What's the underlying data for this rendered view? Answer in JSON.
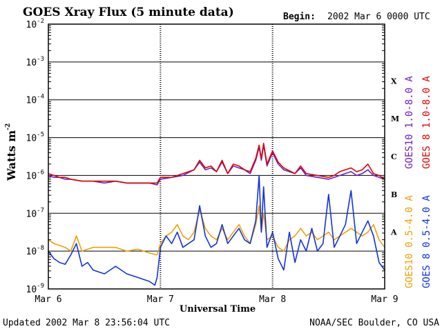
{
  "chart_data": {
    "type": "line",
    "title": "GOES Xray Flux (5 minute data)",
    "begin_label": "Begin:",
    "begin_value": "2002 Mar 6 0000 UTC",
    "ylabel": "Watts m",
    "ylabel_exp": "-2",
    "xlabel": "Universal Time",
    "yscale": "log",
    "ylim": [
      1e-09,
      0.01
    ],
    "y_ticks": [
      {
        "exp": -2,
        "base": "10",
        "sup": "-2"
      },
      {
        "exp": -3,
        "base": "10",
        "sup": "-3"
      },
      {
        "exp": -4,
        "base": "10",
        "sup": "-4"
      },
      {
        "exp": -5,
        "base": "10",
        "sup": "-5"
      },
      {
        "exp": -6,
        "base": "10",
        "sup": "-6"
      },
      {
        "exp": -7,
        "base": "10",
        "sup": "-7"
      },
      {
        "exp": -8,
        "base": "10",
        "sup": "-8"
      },
      {
        "exp": -9,
        "base": "10",
        "sup": "-9"
      }
    ],
    "xlim": [
      0,
      3
    ],
    "x_ticks": [
      {
        "day": 0,
        "label": "Mar 6"
      },
      {
        "day": 1,
        "label": "Mar 7"
      },
      {
        "day": 2,
        "label": "Mar 8"
      },
      {
        "day": 3,
        "label": "Mar 9"
      }
    ],
    "flare_classes": [
      {
        "label": "X",
        "exp": -3.5
      },
      {
        "label": "M",
        "exp": -4.5
      },
      {
        "label": "C",
        "exp": -5.5
      },
      {
        "label": "B",
        "exp": -6.5
      },
      {
        "label": "A",
        "exp": -7.5
      }
    ],
    "series": [
      {
        "name": "GOES10 1.0-8.0 A",
        "color": "#6a1fc8",
        "x": [
          0.0,
          0.05,
          0.1,
          0.15,
          0.2,
          0.3,
          0.4,
          0.5,
          0.6,
          0.7,
          0.8,
          0.9,
          0.97,
          1.0,
          1.1,
          1.2,
          1.3,
          1.35,
          1.4,
          1.45,
          1.5,
          1.55,
          1.6,
          1.65,
          1.7,
          1.75,
          1.8,
          1.85,
          1.88,
          1.9,
          1.92,
          1.95,
          2.0,
          2.05,
          2.1,
          2.2,
          2.25,
          2.3,
          2.4,
          2.5,
          2.55,
          2.6,
          2.7,
          2.75,
          2.8,
          2.85,
          2.9,
          2.95,
          3.0
        ],
        "exponents": [
          -6.0,
          -6.05,
          -6.05,
          -6.1,
          -6.1,
          -6.15,
          -6.15,
          -6.2,
          -6.15,
          -6.2,
          -6.2,
          -6.2,
          -6.25,
          -6.1,
          -6.05,
          -6.0,
          -5.85,
          -5.65,
          -5.85,
          -5.8,
          -5.9,
          -5.65,
          -5.95,
          -5.75,
          -5.8,
          -5.85,
          -5.95,
          -5.6,
          -5.25,
          -5.6,
          -5.2,
          -5.75,
          -5.4,
          -5.7,
          -5.85,
          -5.95,
          -5.8,
          -6.0,
          -6.05,
          -6.1,
          -6.05,
          -6.0,
          -5.9,
          -6.0,
          -5.95,
          -5.85,
          -6.0,
          -6.05,
          -6.1
        ]
      },
      {
        "name": "GOES 8 1.0-8.0 A",
        "color": "#e00000",
        "x": [
          0.0,
          0.05,
          0.1,
          0.15,
          0.2,
          0.3,
          0.4,
          0.5,
          0.6,
          0.7,
          0.8,
          0.9,
          0.97,
          1.0,
          1.1,
          1.2,
          1.3,
          1.35,
          1.4,
          1.45,
          1.5,
          1.55,
          1.6,
          1.65,
          1.7,
          1.75,
          1.8,
          1.85,
          1.88,
          1.9,
          1.92,
          1.95,
          2.0,
          2.05,
          2.1,
          2.2,
          2.25,
          2.3,
          2.4,
          2.5,
          2.55,
          2.6,
          2.7,
          2.75,
          2.8,
          2.85,
          2.9,
          2.95,
          3.0
        ],
        "exponents": [
          -5.95,
          -6.0,
          -6.05,
          -6.05,
          -6.1,
          -6.15,
          -6.15,
          -6.15,
          -6.15,
          -6.2,
          -6.2,
          -6.2,
          -6.2,
          -6.05,
          -6.05,
          -5.95,
          -5.85,
          -5.6,
          -5.8,
          -5.75,
          -5.9,
          -5.6,
          -5.95,
          -5.7,
          -5.75,
          -5.85,
          -5.9,
          -5.55,
          -5.2,
          -5.55,
          -5.15,
          -5.7,
          -5.35,
          -5.65,
          -5.8,
          -5.95,
          -5.75,
          -5.95,
          -6.0,
          -6.05,
          -6.0,
          -5.9,
          -5.8,
          -5.9,
          -5.85,
          -5.7,
          -5.95,
          -6.0,
          -6.1
        ]
      },
      {
        "name": "GOES10 0.5-4.0 A",
        "color": "#f0a000",
        "x": [
          0.0,
          0.05,
          0.1,
          0.15,
          0.2,
          0.25,
          0.3,
          0.35,
          0.4,
          0.5,
          0.6,
          0.7,
          0.8,
          0.9,
          0.97,
          1.0,
          1.05,
          1.1,
          1.15,
          1.2,
          1.25,
          1.3,
          1.35,
          1.4,
          1.45,
          1.5,
          1.55,
          1.6,
          1.65,
          1.7,
          1.75,
          1.8,
          1.85,
          1.88,
          1.9,
          1.92,
          1.95,
          2.0,
          2.05,
          2.1,
          2.15,
          2.2,
          2.25,
          2.3,
          2.35,
          2.4,
          2.45,
          2.5,
          2.55,
          2.6,
          2.65,
          2.7,
          2.75,
          2.8,
          2.85,
          2.9,
          2.95,
          3.0
        ],
        "exponents": [
          -7.7,
          -7.8,
          -7.85,
          -7.9,
          -8.0,
          -7.6,
          -8.0,
          -7.95,
          -7.9,
          -7.9,
          -7.9,
          -8.0,
          -7.95,
          -8.05,
          -8.1,
          -7.8,
          -7.6,
          -7.5,
          -7.3,
          -7.6,
          -7.7,
          -7.5,
          -6.9,
          -7.4,
          -7.6,
          -7.7,
          -7.4,
          -7.7,
          -7.5,
          -7.3,
          -7.6,
          -7.8,
          -7.3,
          -6.8,
          -7.5,
          -7.0,
          -7.7,
          -7.6,
          -7.9,
          -8.0,
          -7.7,
          -7.6,
          -7.4,
          -7.6,
          -7.5,
          -7.7,
          -7.6,
          -7.5,
          -7.7,
          -7.6,
          -7.5,
          -7.4,
          -7.5,
          -7.6,
          -7.5,
          -7.3,
          -7.7,
          -7.9
        ]
      },
      {
        "name": "GOES 8 0.5-4.0 A",
        "color": "#1030e0",
        "x": [
          0.0,
          0.05,
          0.1,
          0.15,
          0.2,
          0.25,
          0.3,
          0.35,
          0.4,
          0.5,
          0.6,
          0.7,
          0.8,
          0.9,
          0.95,
          0.97,
          1.0,
          1.05,
          1.1,
          1.15,
          1.2,
          1.25,
          1.3,
          1.35,
          1.4,
          1.45,
          1.5,
          1.55,
          1.6,
          1.65,
          1.7,
          1.75,
          1.8,
          1.85,
          1.88,
          1.9,
          1.92,
          1.95,
          2.0,
          2.05,
          2.1,
          2.15,
          2.2,
          2.25,
          2.3,
          2.35,
          2.4,
          2.45,
          2.5,
          2.55,
          2.6,
          2.65,
          2.7,
          2.75,
          2.8,
          2.85,
          2.9,
          2.95,
          3.0
        ],
        "exponents": [
          -8.0,
          -8.2,
          -8.3,
          -8.35,
          -8.1,
          -7.8,
          -8.4,
          -8.3,
          -8.5,
          -8.6,
          -8.4,
          -8.6,
          -8.7,
          -8.8,
          -8.9,
          -8.7,
          -7.9,
          -7.6,
          -7.8,
          -7.5,
          -7.9,
          -7.8,
          -7.7,
          -6.8,
          -7.6,
          -7.9,
          -7.8,
          -7.3,
          -7.8,
          -7.6,
          -7.4,
          -7.7,
          -7.8,
          -7.2,
          -6.0,
          -7.5,
          -6.3,
          -7.9,
          -7.5,
          -8.2,
          -8.5,
          -7.5,
          -8.3,
          -7.7,
          -8.0,
          -7.4,
          -8.0,
          -7.8,
          -6.5,
          -7.9,
          -7.6,
          -7.3,
          -6.4,
          -7.8,
          -7.5,
          -7.2,
          -7.6,
          -8.3,
          -8.5
        ]
      }
    ]
  },
  "footer": {
    "updated_label": "Updated",
    "updated_value": "2002 Mar  8 23:56:04 UTC",
    "source": "NOAA/SEC Boulder, CO USA"
  }
}
